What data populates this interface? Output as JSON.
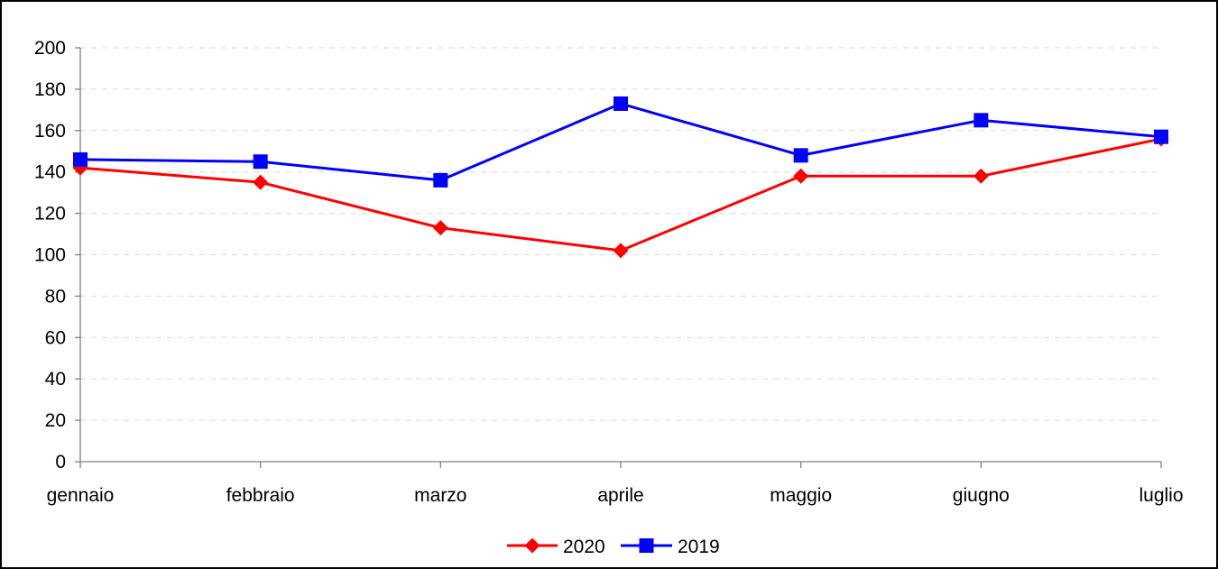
{
  "chart_data": {
    "type": "line",
    "title": "",
    "xlabel": "",
    "ylabel": "",
    "categories": [
      "gennaio",
      "febbraio",
      "marzo",
      "aprile",
      "maggio",
      "giugno",
      "luglio"
    ],
    "series": [
      {
        "name": "2020",
        "values": [
          142,
          135,
          113,
          102,
          138,
          138,
          156
        ],
        "color": "#ff0000",
        "marker": "diamond"
      },
      {
        "name": "2019",
        "values": [
          146,
          145,
          136,
          173,
          148,
          165,
          157
        ],
        "color": "#0000ff",
        "marker": "square"
      }
    ],
    "ylim": [
      0,
      200
    ],
    "yticks": [
      0,
      20,
      40,
      60,
      80,
      100,
      120,
      140,
      160,
      180,
      200
    ],
    "grid": true,
    "legend": "bottom"
  }
}
